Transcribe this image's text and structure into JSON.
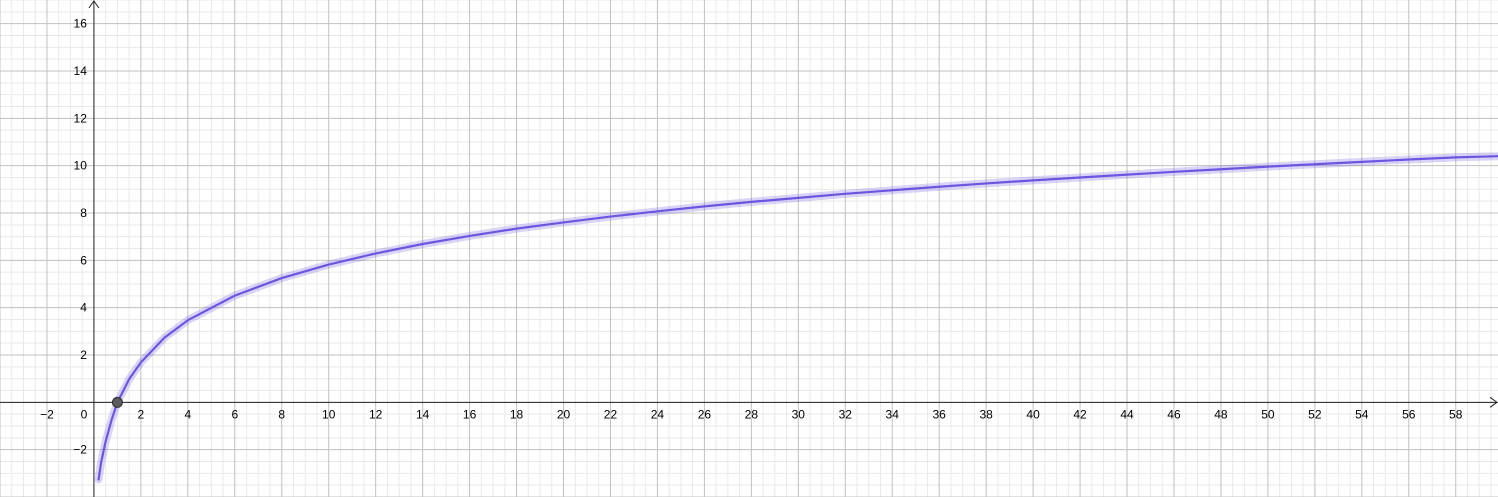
{
  "chart_data": {
    "type": "line",
    "title": "",
    "xlabel": "",
    "ylabel": "",
    "xlim": [
      -4,
      59.8
    ],
    "ylim": [
      -4,
      17
    ],
    "grid": true,
    "x_major_step": 2,
    "y_major_step": 2,
    "minor_per_major": 4,
    "x_tick_labels": [
      "−2",
      "0",
      "2",
      "4",
      "6",
      "8",
      "10",
      "12",
      "14",
      "16",
      "18",
      "20",
      "22",
      "24",
      "26",
      "28",
      "30",
      "32",
      "34",
      "36",
      "38",
      "40",
      "42",
      "44",
      "46",
      "48",
      "50",
      "52",
      "54",
      "56",
      "58"
    ],
    "y_tick_labels": [
      "−2",
      "2",
      "4",
      "6",
      "8",
      "10",
      "12",
      "14",
      "16"
    ],
    "series": [
      {
        "color": "#6a57e0",
        "x": [
          0.2,
          0.3,
          0.5,
          0.75,
          1,
          1.5,
          2,
          3,
          4,
          6,
          8,
          10,
          12,
          14,
          16,
          18,
          20,
          22,
          24,
          26,
          28,
          30,
          32,
          34,
          36,
          38,
          40,
          42,
          44,
          46,
          48,
          50,
          52,
          54,
          56,
          58,
          59.8
        ],
        "y": [
          -3.26,
          -2.57,
          -1.65,
          -0.75,
          0,
          0.98,
          1.69,
          2.73,
          3.47,
          4.51,
          5.25,
          5.82,
          6.29,
          6.69,
          7.03,
          7.34,
          7.6,
          7.85,
          8.07,
          8.28,
          8.47,
          8.64,
          8.81,
          8.96,
          9.11,
          9.25,
          9.38,
          9.5,
          9.62,
          9.74,
          9.85,
          9.96,
          10.06,
          10.16,
          10.26,
          10.35,
          10.4
        ]
      }
    ],
    "points": [
      {
        "x": 1,
        "y": 0,
        "color": "#5a5a5a"
      }
    ]
  }
}
